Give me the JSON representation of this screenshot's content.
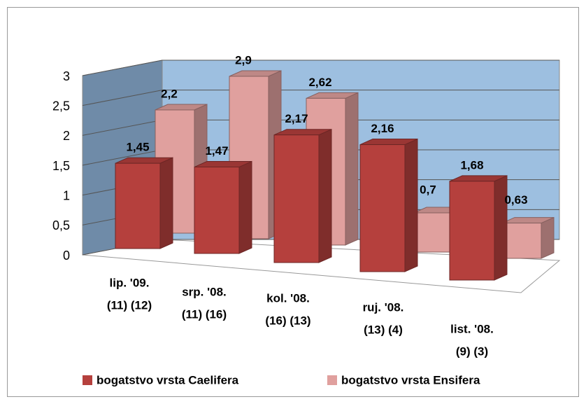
{
  "chart_data": {
    "type": "bar3d",
    "categories": [
      [
        "lip. '09.",
        "(11)  (12)"
      ],
      [
        "srp. '08.",
        "(11)  (16)"
      ],
      [
        "kol. '08.",
        "(16)  (13)"
      ],
      [
        "ruj. '08.",
        "(13)  (4)"
      ],
      [
        "list. '08.",
        "(9)  (3)"
      ]
    ],
    "series": [
      {
        "name": "bogatstvo vrsta Caelifera",
        "color": "#b5403d",
        "values": [
          1.45,
          1.47,
          2.17,
          2.16,
          1.68
        ],
        "value_labels": [
          "1,45",
          "1,47",
          "2,17",
          "2,16",
          "1,68"
        ]
      },
      {
        "name": "bogatstvo vrsta Ensifera",
        "color": "#e0a09e",
        "values": [
          2.2,
          2.9,
          2.62,
          0.7,
          0.63
        ],
        "value_labels": [
          "2,2",
          "2,9",
          "2,62",
          "0,7",
          "0,63"
        ]
      }
    ],
    "ylim": [
      0,
      3
    ],
    "yticks": [
      0,
      {
        "value": 0.5,
        "label": "0,5"
      },
      1,
      {
        "value": 1.5,
        "label": "1,5"
      },
      2,
      {
        "value": 2.5,
        "label": "2,5"
      },
      3
    ],
    "grid": true,
    "legend": "bottom"
  }
}
